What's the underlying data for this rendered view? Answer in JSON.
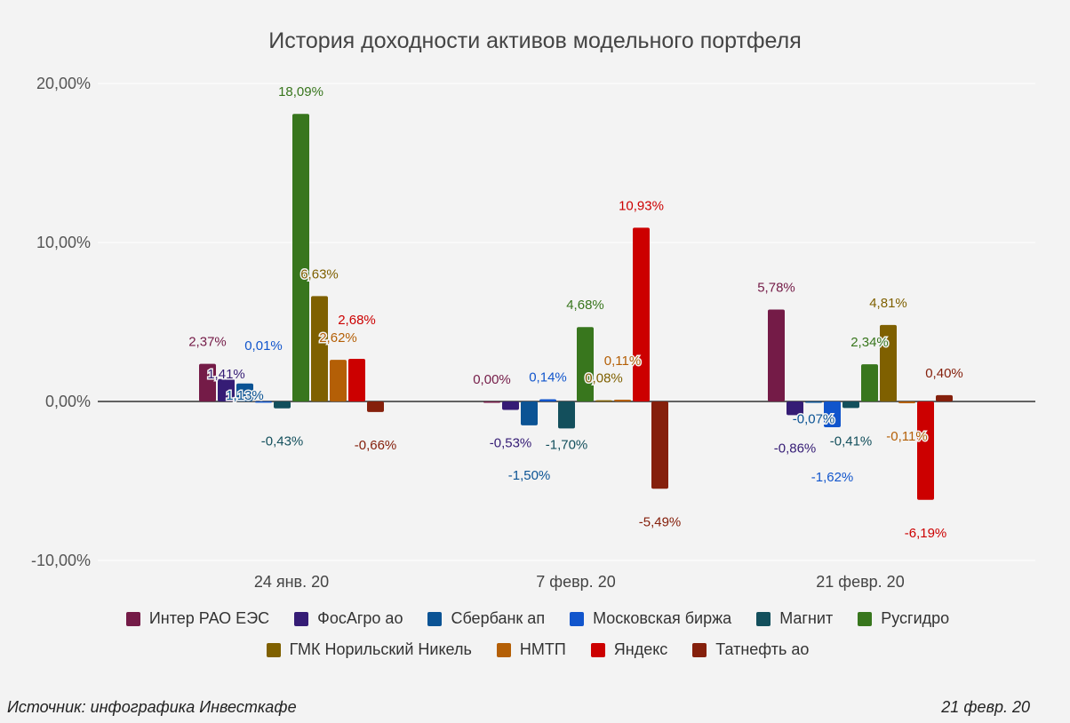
{
  "chart_data": {
    "type": "bar",
    "title": "История доходности активов модельного портфеля",
    "categories": [
      "24 янв. 20",
      "7 февр. 20",
      "21 февр. 20"
    ],
    "ylim": [
      -10,
      20
    ],
    "yticks": [
      -10,
      0,
      10,
      20
    ],
    "ytick_labels": [
      "-10,00%",
      "0,00%",
      "10,00%",
      "20,00%"
    ],
    "grid": true,
    "legend_position": "bottom",
    "series": [
      {
        "name": "Интер РАО ЕЭС",
        "color": "#741b47",
        "values": [
          2.37,
          0.0,
          5.78
        ]
      },
      {
        "name": "ФосАгро ао",
        "color": "#351c75",
        "values": [
          1.41,
          -0.53,
          -0.86
        ]
      },
      {
        "name": "Сбербанк ап",
        "color": "#0b5394",
        "values": [
          1.13,
          -1.5,
          -0.07
        ]
      },
      {
        "name": "Московская биржа",
        "color": "#1155cc",
        "values": [
          0.01,
          0.14,
          -1.62
        ]
      },
      {
        "name": "Магнит",
        "color": "#134f5c",
        "values": [
          -0.43,
          -1.7,
          -0.41
        ]
      },
      {
        "name": "Русгидро",
        "color": "#38761d",
        "values": [
          18.09,
          4.68,
          2.34
        ]
      },
      {
        "name": "ГМК Норильский Никель",
        "color": "#7f6000",
        "values": [
          6.63,
          0.08,
          4.81
        ]
      },
      {
        "name": "НМТП",
        "color": "#b45f06",
        "values": [
          2.62,
          0.11,
          -0.11
        ]
      },
      {
        "name": "Яндекс",
        "color": "#cc0000",
        "values": [
          2.68,
          10.93,
          -6.19
        ]
      },
      {
        "name": "Татнефть ао",
        "color": "#85200c",
        "values": [
          -0.66,
          -5.49,
          0.4
        ]
      }
    ]
  },
  "footer": {
    "source": "Источник: инфографика Инвесткафе",
    "date": "21 февр. 20"
  }
}
